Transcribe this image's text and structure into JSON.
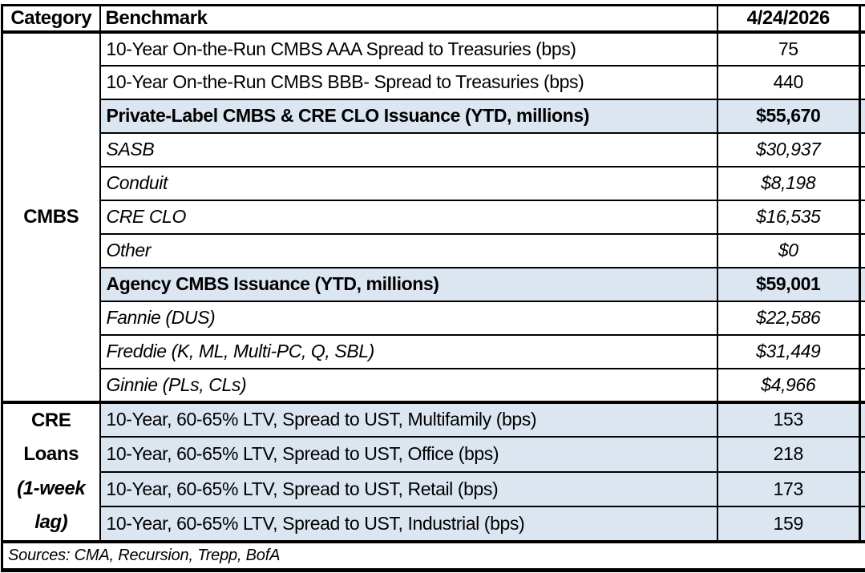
{
  "chart_data": {
    "type": "table",
    "columns": [
      "Category",
      "Benchmark",
      "4/24/2026"
    ],
    "rows": [
      [
        "CMBS",
        "10-Year On-the-Run CMBS AAA Spread to Treasuries (bps)",
        "75"
      ],
      [
        "CMBS",
        "10-Year On-the-Run CMBS BBB- Spread to Treasuries (bps)",
        "440"
      ],
      [
        "CMBS",
        "Private-Label CMBS & CRE CLO Issuance (YTD, millions)",
        "$55,670"
      ],
      [
        "CMBS",
        "SASB",
        "$30,937"
      ],
      [
        "CMBS",
        "Conduit",
        "$8,198"
      ],
      [
        "CMBS",
        "CRE CLO",
        "$16,535"
      ],
      [
        "CMBS",
        "Other",
        "$0"
      ],
      [
        "CMBS",
        "Agency CMBS Issuance (YTD, millions)",
        "$59,001"
      ],
      [
        "CMBS",
        "Fannie (DUS)",
        "$22,586"
      ],
      [
        "CMBS",
        "Freddie (K, ML, Multi-PC, Q, SBL)",
        "$31,449"
      ],
      [
        "CMBS",
        "Ginnie (PLs, CLs)",
        "$4,966"
      ],
      [
        "CRE Loans (1-week lag)",
        "10-Year, 60-65% LTV, Spread to UST, Multifamily (bps)",
        "153"
      ],
      [
        "CRE Loans (1-week lag)",
        "10-Year, 60-65% LTV, Spread to UST, Office (bps)",
        "218"
      ],
      [
        "CRE Loans (1-week lag)",
        "10-Year, 60-65% LTV, Spread to UST, Retail (bps)",
        "173"
      ],
      [
        "CRE Loans (1-week lag)",
        "10-Year, 60-65% LTV, Spread to UST, Industrial (bps)",
        "159"
      ]
    ],
    "footnote": "Sources: CMA, Recursion, Trepp, BofA"
  },
  "header": {
    "category": "Category",
    "benchmark": "Benchmark",
    "date": "4/24/2026"
  },
  "categories": {
    "cmbs": "CMBS",
    "cre_lines": {
      "l1": "CRE",
      "l2": "Loans",
      "l3": "(1-week",
      "l4": "lag)"
    }
  },
  "footer": {
    "sources": "Sources: CMA, Recursion, Trepp, BofA"
  },
  "colors": {
    "row_highlight": "#dbe6f1",
    "border": "#000000",
    "text": "#000000",
    "background": "#ffffff"
  }
}
